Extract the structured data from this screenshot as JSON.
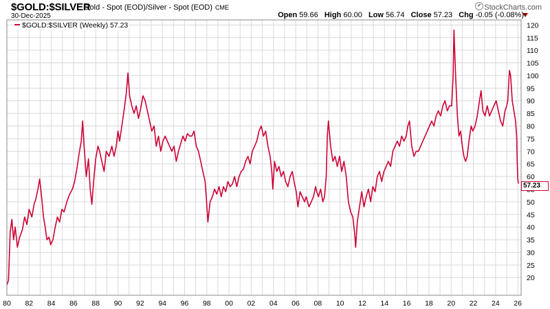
{
  "header": {
    "symbol": "$GOLD:$SILVER",
    "description": "Gold - Spot (EOD)/Silver - Spot (EOD)",
    "exchange": "CME",
    "date": "30-Dec-2025",
    "brand": "StockCharts.com",
    "open_label": "Open",
    "open": "59.66",
    "high_label": "High",
    "high": "60.00",
    "low_label": "Low",
    "low": "56.74",
    "close_label": "Close",
    "close": "57.23",
    "chg_label": "Chg",
    "chg": "-0.05 (-0.08%)"
  },
  "legend": {
    "text": "$GOLD:$SILVER (Weekly) 57.23"
  },
  "last_value_label": "57.23",
  "colors": {
    "series": "#cc0033",
    "grid": "#d9d9d9",
    "border": "#888888",
    "down": "#8b0000"
  },
  "chart_data": {
    "type": "line",
    "title": "$GOLD:$SILVER",
    "xlabel": "",
    "ylabel": "",
    "xlim": [
      1980.0,
      2026.3
    ],
    "ylim": [
      13,
      122
    ],
    "y_axis_side": "right",
    "grid": true,
    "legend_position": "top-left",
    "x_ticks": [
      "80",
      "82",
      "84",
      "86",
      "88",
      "90",
      "92",
      "94",
      "96",
      "98",
      "00",
      "02",
      "04",
      "06",
      "08",
      "10",
      "12",
      "14",
      "16",
      "18",
      "20",
      "22",
      "24",
      "26"
    ],
    "y_ticks": [
      20,
      25,
      30,
      35,
      40,
      45,
      50,
      55,
      60,
      65,
      70,
      75,
      80,
      85,
      90,
      95,
      100,
      105,
      110,
      115,
      120
    ],
    "series": [
      {
        "name": "$GOLD:$SILVER (Weekly)",
        "points": [
          [
            1980.0,
            17
          ],
          [
            1980.15,
            19
          ],
          [
            1980.3,
            38
          ],
          [
            1980.45,
            43
          ],
          [
            1980.6,
            35
          ],
          [
            1980.75,
            40
          ],
          [
            1980.95,
            32
          ],
          [
            1981.15,
            36
          ],
          [
            1981.4,
            39
          ],
          [
            1981.6,
            44
          ],
          [
            1981.8,
            41
          ],
          [
            1982.0,
            47
          ],
          [
            1982.25,
            44
          ],
          [
            1982.45,
            49
          ],
          [
            1982.6,
            51
          ],
          [
            1982.8,
            55
          ],
          [
            1982.95,
            59
          ],
          [
            1983.1,
            53
          ],
          [
            1983.3,
            44
          ],
          [
            1983.45,
            40
          ],
          [
            1983.6,
            35
          ],
          [
            1983.8,
            36
          ],
          [
            1983.95,
            33
          ],
          [
            1984.15,
            35
          ],
          [
            1984.35,
            40
          ],
          [
            1984.55,
            44
          ],
          [
            1984.75,
            42
          ],
          [
            1984.95,
            47
          ],
          [
            1985.15,
            46
          ],
          [
            1985.4,
            50
          ],
          [
            1985.65,
            53
          ],
          [
            1985.9,
            55
          ],
          [
            1986.1,
            58
          ],
          [
            1986.3,
            63
          ],
          [
            1986.5,
            69
          ],
          [
            1986.7,
            74
          ],
          [
            1986.82,
            82
          ],
          [
            1986.95,
            72
          ],
          [
            1987.15,
            60
          ],
          [
            1987.35,
            67
          ],
          [
            1987.5,
            55
          ],
          [
            1987.65,
            49
          ],
          [
            1987.85,
            60
          ],
          [
            1988.0,
            67
          ],
          [
            1988.2,
            72
          ],
          [
            1988.35,
            70
          ],
          [
            1988.55,
            66
          ],
          [
            1988.75,
            62
          ],
          [
            1988.95,
            70
          ],
          [
            1989.2,
            68
          ],
          [
            1989.45,
            72
          ],
          [
            1989.65,
            68
          ],
          [
            1989.85,
            72
          ],
          [
            1990.0,
            78
          ],
          [
            1990.15,
            74
          ],
          [
            1990.35,
            80
          ],
          [
            1990.55,
            86
          ],
          [
            1990.75,
            93
          ],
          [
            1990.9,
            101
          ],
          [
            1991.05,
            92
          ],
          [
            1991.25,
            88
          ],
          [
            1991.45,
            85
          ],
          [
            1991.65,
            88
          ],
          [
            1991.85,
            83
          ],
          [
            1992.05,
            87
          ],
          [
            1992.25,
            92
          ],
          [
            1992.45,
            90
          ],
          [
            1992.65,
            86
          ],
          [
            1992.85,
            82
          ],
          [
            1993.05,
            78
          ],
          [
            1993.25,
            80
          ],
          [
            1993.45,
            72
          ],
          [
            1993.65,
            76
          ],
          [
            1993.85,
            70
          ],
          [
            1994.05,
            74
          ],
          [
            1994.25,
            76
          ],
          [
            1994.45,
            74
          ],
          [
            1994.65,
            72
          ],
          [
            1994.85,
            70
          ],
          [
            1995.05,
            72
          ],
          [
            1995.25,
            66
          ],
          [
            1995.45,
            70
          ],
          [
            1995.65,
            73
          ],
          [
            1995.85,
            76
          ],
          [
            1996.05,
            74
          ],
          [
            1996.25,
            77
          ],
          [
            1996.45,
            76
          ],
          [
            1996.65,
            76
          ],
          [
            1996.85,
            78
          ],
          [
            1997.05,
            72
          ],
          [
            1997.25,
            70
          ],
          [
            1997.45,
            66
          ],
          [
            1997.65,
            62
          ],
          [
            1997.85,
            58
          ],
          [
            1997.95,
            52
          ],
          [
            1998.1,
            42
          ],
          [
            1998.3,
            50
          ],
          [
            1998.5,
            52
          ],
          [
            1998.7,
            55
          ],
          [
            1998.9,
            53
          ],
          [
            1999.1,
            56
          ],
          [
            1999.3,
            52
          ],
          [
            1999.5,
            56
          ],
          [
            1999.7,
            54
          ],
          [
            1999.9,
            58
          ],
          [
            2000.1,
            56
          ],
          [
            2000.3,
            57
          ],
          [
            2000.5,
            60
          ],
          [
            2000.7,
            56
          ],
          [
            2000.9,
            60
          ],
          [
            2001.1,
            62
          ],
          [
            2001.3,
            63
          ],
          [
            2001.5,
            66
          ],
          [
            2001.7,
            68
          ],
          [
            2001.9,
            65
          ],
          [
            2002.1,
            70
          ],
          [
            2002.3,
            72
          ],
          [
            2002.5,
            74
          ],
          [
            2002.7,
            78
          ],
          [
            2002.9,
            80
          ],
          [
            2003.1,
            76
          ],
          [
            2003.3,
            78
          ],
          [
            2003.5,
            72
          ],
          [
            2003.7,
            68
          ],
          [
            2003.85,
            62
          ],
          [
            2003.95,
            55
          ],
          [
            2004.1,
            66
          ],
          [
            2004.3,
            62
          ],
          [
            2004.5,
            64
          ],
          [
            2004.7,
            60
          ],
          [
            2004.9,
            62
          ],
          [
            2005.1,
            58
          ],
          [
            2005.3,
            56
          ],
          [
            2005.5,
            60
          ],
          [
            2005.7,
            62
          ],
          [
            2005.9,
            57
          ],
          [
            2006.05,
            54
          ],
          [
            2006.2,
            48
          ],
          [
            2006.4,
            54
          ],
          [
            2006.6,
            52
          ],
          [
            2006.8,
            50
          ],
          [
            2006.95,
            52
          ],
          [
            2007.2,
            48
          ],
          [
            2007.4,
            50
          ],
          [
            2007.6,
            52
          ],
          [
            2007.8,
            56
          ],
          [
            2007.9,
            54
          ],
          [
            2008.05,
            52
          ],
          [
            2008.25,
            55
          ],
          [
            2008.45,
            50
          ],
          [
            2008.6,
            52
          ],
          [
            2008.75,
            60
          ],
          [
            2008.85,
            76
          ],
          [
            2008.95,
            82
          ],
          [
            2009.15,
            72
          ],
          [
            2009.35,
            66
          ],
          [
            2009.55,
            68
          ],
          [
            2009.75,
            64
          ],
          [
            2009.95,
            68
          ],
          [
            2010.15,
            62
          ],
          [
            2010.35,
            66
          ],
          [
            2010.55,
            60
          ],
          [
            2010.75,
            50
          ],
          [
            2010.95,
            46
          ],
          [
            2011.15,
            44
          ],
          [
            2011.3,
            38
          ],
          [
            2011.4,
            32
          ],
          [
            2011.55,
            42
          ],
          [
            2011.75,
            48
          ],
          [
            2011.95,
            54
          ],
          [
            2012.15,
            48
          ],
          [
            2012.35,
            52
          ],
          [
            2012.55,
            55
          ],
          [
            2012.75,
            50
          ],
          [
            2012.95,
            56
          ],
          [
            2013.15,
            54
          ],
          [
            2013.35,
            60
          ],
          [
            2013.55,
            62
          ],
          [
            2013.75,
            58
          ],
          [
            2013.95,
            62
          ],
          [
            2014.15,
            64
          ],
          [
            2014.35,
            66
          ],
          [
            2014.55,
            64
          ],
          [
            2014.75,
            70
          ],
          [
            2014.95,
            72
          ],
          [
            2015.15,
            74
          ],
          [
            2015.35,
            72
          ],
          [
            2015.55,
            76
          ],
          [
            2015.75,
            74
          ],
          [
            2015.95,
            76
          ],
          [
            2016.1,
            80
          ],
          [
            2016.25,
            82
          ],
          [
            2016.45,
            72
          ],
          [
            2016.65,
            68
          ],
          [
            2016.85,
            70
          ],
          [
            2017.05,
            70
          ],
          [
            2017.25,
            72
          ],
          [
            2017.45,
            74
          ],
          [
            2017.65,
            76
          ],
          [
            2017.85,
            78
          ],
          [
            2018.05,
            80
          ],
          [
            2018.25,
            82
          ],
          [
            2018.45,
            80
          ],
          [
            2018.65,
            84
          ],
          [
            2018.85,
            86
          ],
          [
            2019.05,
            84
          ],
          [
            2019.25,
            88
          ],
          [
            2019.45,
            90
          ],
          [
            2019.65,
            86
          ],
          [
            2019.85,
            88
          ],
          [
            2020.05,
            88
          ],
          [
            2020.18,
            100
          ],
          [
            2020.25,
            118
          ],
          [
            2020.3,
            112
          ],
          [
            2020.4,
            100
          ],
          [
            2020.55,
            85
          ],
          [
            2020.7,
            76
          ],
          [
            2020.85,
            78
          ],
          [
            2021.0,
            72
          ],
          [
            2021.15,
            68
          ],
          [
            2021.3,
            66
          ],
          [
            2021.45,
            68
          ],
          [
            2021.6,
            74
          ],
          [
            2021.8,
            80
          ],
          [
            2021.95,
            78
          ],
          [
            2022.15,
            80
          ],
          [
            2022.35,
            84
          ],
          [
            2022.55,
            90
          ],
          [
            2022.7,
            94
          ],
          [
            2022.85,
            86
          ],
          [
            2023.05,
            84
          ],
          [
            2023.25,
            88
          ],
          [
            2023.45,
            84
          ],
          [
            2023.65,
            86
          ],
          [
            2023.85,
            88
          ],
          [
            2024.05,
            90
          ],
          [
            2024.25,
            86
          ],
          [
            2024.45,
            82
          ],
          [
            2024.65,
            80
          ],
          [
            2024.85,
            86
          ],
          [
            2025.0,
            88
          ],
          [
            2025.1,
            90
          ],
          [
            2025.25,
            102
          ],
          [
            2025.35,
            100
          ],
          [
            2025.5,
            90
          ],
          [
            2025.65,
            86
          ],
          [
            2025.8,
            82
          ],
          [
            2025.9,
            76
          ],
          [
            2025.95,
            66
          ],
          [
            2026.0,
            59
          ],
          [
            2026.05,
            57.23
          ]
        ]
      }
    ],
    "last_value": 57.23
  }
}
